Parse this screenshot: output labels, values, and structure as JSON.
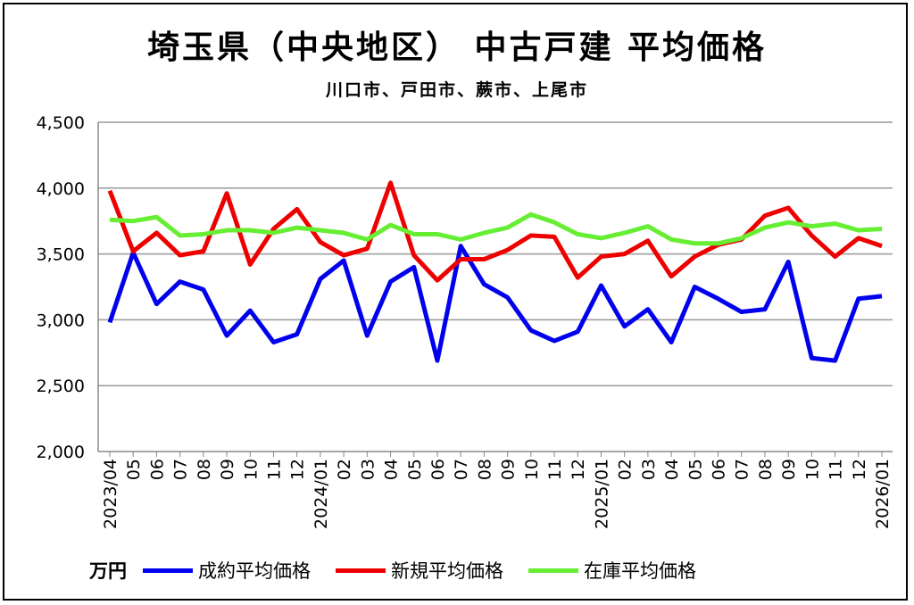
{
  "chart_data": {
    "type": "line",
    "title": "埼玉県（中央地区） 中古戸建  平均価格",
    "subtitle": "川口市、戸田市、蕨市、上尾市",
    "unit_label": "万円",
    "ylim": [
      2000,
      4500
    ],
    "yticks": [
      "2,000",
      "2,500",
      "3,000",
      "3,500",
      "4,000",
      "4,500"
    ],
    "ytick_values": [
      2000,
      2500,
      3000,
      3500,
      4000,
      4500
    ],
    "grid": true,
    "legend_placement": "bottom",
    "categories": [
      "2023/04",
      "05",
      "06",
      "07",
      "08",
      "09",
      "10",
      "11",
      "12",
      "2024/01",
      "02",
      "03",
      "04",
      "05",
      "06",
      "07",
      "08",
      "09",
      "10",
      "11",
      "12",
      "2025/01",
      "02",
      "03",
      "04",
      "05",
      "06",
      "07",
      "08",
      "09",
      "10",
      "11",
      "12",
      "2026/01"
    ],
    "series": [
      {
        "name": "成約平均価格",
        "color": "#0000ee",
        "values": [
          2980,
          3510,
          3120,
          3290,
          3230,
          2880,
          3070,
          2830,
          2890,
          3310,
          3450,
          2880,
          3290,
          3400,
          2690,
          3560,
          3270,
          3170,
          2920,
          2840,
          2910,
          3260,
          2950,
          3080,
          2830,
          3250,
          3160,
          3060,
          3080,
          3440,
          2710,
          2690,
          3160,
          3180
        ]
      },
      {
        "name": "新規平均価格",
        "color": "#ee0000",
        "values": [
          3980,
          3520,
          3660,
          3490,
          3520,
          3960,
          3420,
          3690,
          3840,
          3590,
          3490,
          3540,
          4040,
          3490,
          3300,
          3460,
          3460,
          3530,
          3640,
          3630,
          3320,
          3480,
          3500,
          3600,
          3330,
          3480,
          3570,
          3610,
          3790,
          3850,
          3640,
          3480,
          3620,
          3560
        ]
      },
      {
        "name": "在庫平均価格",
        "color": "#66ee33",
        "values": [
          3760,
          3750,
          3780,
          3640,
          3650,
          3680,
          3680,
          3660,
          3700,
          3680,
          3660,
          3610,
          3720,
          3650,
          3650,
          3610,
          3660,
          3700,
          3800,
          3740,
          3650,
          3620,
          3660,
          3710,
          3610,
          3580,
          3580,
          3620,
          3700,
          3740,
          3710,
          3730,
          3680,
          3690
        ]
      }
    ]
  }
}
